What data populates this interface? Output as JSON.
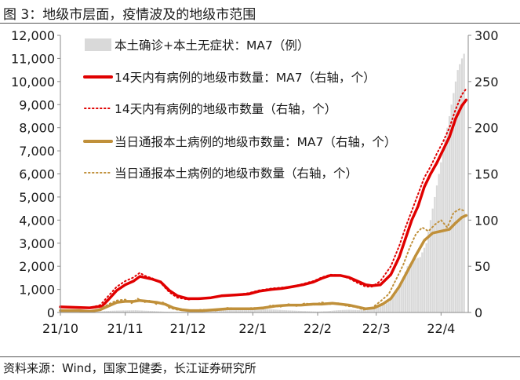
{
  "header": {
    "title": "图 3：地级市层面，疫情波及的地级市范围"
  },
  "footer": {
    "source": "资料来源：Wind，国家卫健委，长江证券研究所"
  },
  "chart_data": {
    "type": "bar+line",
    "title": "图 3：地级市层面，疫情波及的地级市范围",
    "left_axis": {
      "range": [
        0,
        12000
      ],
      "ticks": [
        "0",
        "1,000",
        "2,000",
        "3,000",
        "4,000",
        "5,000",
        "6,000",
        "7,000",
        "8,000",
        "9,000",
        "10,000",
        "11,000",
        "12,000"
      ]
    },
    "right_axis": {
      "range": [
        0,
        300
      ],
      "ticks": [
        "0",
        "50",
        "100",
        "150",
        "200",
        "250",
        "300"
      ]
    },
    "x_axis": {
      "range": [
        "2021-10-01",
        "2022-04-14"
      ],
      "ticks": [
        {
          "label": "21/10",
          "date": "2021-10-01"
        },
        {
          "label": "21/11",
          "date": "2021-11-01"
        },
        {
          "label": "21/12",
          "date": "2021-12-01"
        },
        {
          "label": "22/1",
          "date": "2022-01-01"
        },
        {
          "label": "22/2",
          "date": "2022-02-01"
        },
        {
          "label": "22/3",
          "date": "2022-03-01"
        },
        {
          "label": "22/4",
          "date": "2022-04-01"
        }
      ]
    },
    "legend_position": "top-right",
    "series": [
      {
        "name": "本土确诊+本土无症状：MA7（例）",
        "kind": "bar",
        "axis": "left",
        "color": "#d9d9d9",
        "points": [
          [
            "2021-10-01",
            10
          ],
          [
            "2021-10-15",
            10
          ],
          [
            "2021-10-18",
            30
          ],
          [
            "2021-10-22",
            60
          ],
          [
            "2021-10-27",
            80
          ],
          [
            "2021-11-01",
            90
          ],
          [
            "2021-11-06",
            100
          ],
          [
            "2021-11-10",
            80
          ],
          [
            "2021-11-15",
            60
          ],
          [
            "2021-11-20",
            35
          ],
          [
            "2021-11-25",
            25
          ],
          [
            "2021-12-01",
            30
          ],
          [
            "2021-12-07",
            40
          ],
          [
            "2021-12-12",
            80
          ],
          [
            "2021-12-17",
            100
          ],
          [
            "2021-12-22",
            160
          ],
          [
            "2021-12-27",
            180
          ],
          [
            "2022-01-01",
            170
          ],
          [
            "2022-01-06",
            150
          ],
          [
            "2022-01-11",
            130
          ],
          [
            "2022-01-16",
            100
          ],
          [
            "2022-01-21",
            80
          ],
          [
            "2022-01-26",
            60
          ],
          [
            "2022-02-01",
            40
          ],
          [
            "2022-02-06",
            60
          ],
          [
            "2022-02-11",
            100
          ],
          [
            "2022-02-16",
            120
          ],
          [
            "2022-02-21",
            100
          ],
          [
            "2022-02-26",
            150
          ],
          [
            "2022-03-01",
            200
          ],
          [
            "2022-03-04",
            300
          ],
          [
            "2022-03-07",
            450
          ],
          [
            "2022-03-10",
            800
          ],
          [
            "2022-03-13",
            1300
          ],
          [
            "2022-03-16",
            2000
          ],
          [
            "2022-03-19",
            2300
          ],
          [
            "2022-03-22",
            2400
          ],
          [
            "2022-03-25",
            3000
          ],
          [
            "2022-03-28",
            4500
          ],
          [
            "2022-03-31",
            6000
          ],
          [
            "2022-04-03",
            7500
          ],
          [
            "2022-04-06",
            9000
          ],
          [
            "2022-04-09",
            10500
          ],
          [
            "2022-04-11",
            11000
          ],
          [
            "2022-04-12",
            11200
          ]
        ]
      },
      {
        "name": "14天内有病例的地级市数量：MA7（右轴，个）",
        "kind": "line",
        "axis": "right",
        "color": "#e00000",
        "style": "solid",
        "points": [
          [
            "2021-10-01",
            6
          ],
          [
            "2021-10-08",
            5.5
          ],
          [
            "2021-10-15",
            5
          ],
          [
            "2021-10-21",
            7
          ],
          [
            "2021-10-24",
            14
          ],
          [
            "2021-10-28",
            24
          ],
          [
            "2021-11-01",
            30
          ],
          [
            "2021-11-05",
            34
          ],
          [
            "2021-11-08",
            39
          ],
          [
            "2021-11-10",
            38
          ],
          [
            "2021-11-14",
            36
          ],
          [
            "2021-11-18",
            33
          ],
          [
            "2021-11-22",
            24
          ],
          [
            "2021-11-26",
            18
          ],
          [
            "2021-12-01",
            15
          ],
          [
            "2021-12-06",
            15
          ],
          [
            "2021-12-12",
            16
          ],
          [
            "2021-12-17",
            18
          ],
          [
            "2021-12-24",
            19
          ],
          [
            "2021-12-30",
            20
          ],
          [
            "2022-01-04",
            23
          ],
          [
            "2022-01-10",
            25
          ],
          [
            "2022-01-15",
            26
          ],
          [
            "2022-01-20",
            28
          ],
          [
            "2022-01-25",
            30
          ],
          [
            "2022-01-30",
            33
          ],
          [
            "2022-02-03",
            37
          ],
          [
            "2022-02-07",
            40
          ],
          [
            "2022-02-12",
            40
          ],
          [
            "2022-02-16",
            38
          ],
          [
            "2022-02-20",
            34
          ],
          [
            "2022-02-24",
            30
          ],
          [
            "2022-02-27",
            29
          ],
          [
            "2022-03-03",
            30
          ],
          [
            "2022-03-08",
            41
          ],
          [
            "2022-03-12",
            60
          ],
          [
            "2022-03-15",
            80
          ],
          [
            "2022-03-18",
            100
          ],
          [
            "2022-03-21",
            115
          ],
          [
            "2022-03-24",
            136
          ],
          [
            "2022-03-27",
            150
          ],
          [
            "2022-03-30",
            162
          ],
          [
            "2022-04-02",
            176
          ],
          [
            "2022-04-05",
            190
          ],
          [
            "2022-04-08",
            210
          ],
          [
            "2022-04-11",
            224
          ],
          [
            "2022-04-13",
            230
          ]
        ]
      },
      {
        "name": "14天内有病例的地级市数量（右轴，个）",
        "kind": "line",
        "axis": "right",
        "color": "#e00000",
        "style": "dotted",
        "points": [
          [
            "2021-10-01",
            6
          ],
          [
            "2021-10-08",
            5.5
          ],
          [
            "2021-10-15",
            5
          ],
          [
            "2021-10-20",
            8
          ],
          [
            "2021-10-24",
            18
          ],
          [
            "2021-10-28",
            28
          ],
          [
            "2021-11-01",
            34
          ],
          [
            "2021-11-05",
            38
          ],
          [
            "2021-11-08",
            43
          ],
          [
            "2021-11-10",
            40
          ],
          [
            "2021-11-14",
            37
          ],
          [
            "2021-11-18",
            32
          ],
          [
            "2021-11-22",
            22
          ],
          [
            "2021-11-26",
            16
          ],
          [
            "2021-12-01",
            14
          ],
          [
            "2021-12-06",
            15
          ],
          [
            "2021-12-12",
            16
          ],
          [
            "2021-12-17",
            18
          ],
          [
            "2021-12-24",
            19
          ],
          [
            "2021-12-30",
            21
          ],
          [
            "2022-01-04",
            24
          ],
          [
            "2022-01-10",
            26
          ],
          [
            "2022-01-15",
            27
          ],
          [
            "2022-01-20",
            28
          ],
          [
            "2022-01-25",
            31
          ],
          [
            "2022-01-30",
            34
          ],
          [
            "2022-02-03",
            38
          ],
          [
            "2022-02-07",
            41
          ],
          [
            "2022-02-12",
            40
          ],
          [
            "2022-02-16",
            37
          ],
          [
            "2022-02-20",
            32
          ],
          [
            "2022-02-24",
            28
          ],
          [
            "2022-02-27",
            28
          ],
          [
            "2022-03-03",
            34
          ],
          [
            "2022-03-08",
            50
          ],
          [
            "2022-03-12",
            72
          ],
          [
            "2022-03-15",
            92
          ],
          [
            "2022-03-18",
            110
          ],
          [
            "2022-03-21",
            128
          ],
          [
            "2022-03-24",
            146
          ],
          [
            "2022-03-27",
            158
          ],
          [
            "2022-03-30",
            172
          ],
          [
            "2022-04-02",
            185
          ],
          [
            "2022-04-05",
            200
          ],
          [
            "2022-04-08",
            220
          ],
          [
            "2022-04-11",
            236
          ],
          [
            "2022-04-13",
            242
          ]
        ]
      },
      {
        "name": "当日通报本土病例的地级市数量：MA7（右轴，个）",
        "kind": "line",
        "axis": "right",
        "color": "#c0903a",
        "style": "solid",
        "points": [
          [
            "2021-10-01",
            2
          ],
          [
            "2021-10-10",
            2
          ],
          [
            "2021-10-15",
            1
          ],
          [
            "2021-10-20",
            3
          ],
          [
            "2021-10-25",
            8
          ],
          [
            "2021-10-28",
            11
          ],
          [
            "2021-11-01",
            12
          ],
          [
            "2021-11-05",
            12
          ],
          [
            "2021-11-08",
            13
          ],
          [
            "2021-11-12",
            12
          ],
          [
            "2021-11-16",
            11
          ],
          [
            "2021-11-20",
            9
          ],
          [
            "2021-11-24",
            5
          ],
          [
            "2021-11-28",
            3
          ],
          [
            "2021-12-02",
            2
          ],
          [
            "2021-12-08",
            2
          ],
          [
            "2021-12-14",
            3
          ],
          [
            "2021-12-20",
            4
          ],
          [
            "2021-12-26",
            4
          ],
          [
            "2022-01-01",
            4
          ],
          [
            "2022-01-06",
            5
          ],
          [
            "2022-01-12",
            7
          ],
          [
            "2022-01-18",
            8
          ],
          [
            "2022-01-24",
            8
          ],
          [
            "2022-01-30",
            9
          ],
          [
            "2022-02-03",
            9
          ],
          [
            "2022-02-08",
            10
          ],
          [
            "2022-02-12",
            9
          ],
          [
            "2022-02-16",
            8
          ],
          [
            "2022-02-20",
            6
          ],
          [
            "2022-02-24",
            4
          ],
          [
            "2022-02-28",
            5
          ],
          [
            "2022-03-04",
            9
          ],
          [
            "2022-03-08",
            15
          ],
          [
            "2022-03-12",
            28
          ],
          [
            "2022-03-16",
            45
          ],
          [
            "2022-03-20",
            62
          ],
          [
            "2022-03-24",
            78
          ],
          [
            "2022-03-28",
            86
          ],
          [
            "2022-04-01",
            88
          ],
          [
            "2022-04-05",
            90
          ],
          [
            "2022-04-08",
            97
          ],
          [
            "2022-04-11",
            103
          ],
          [
            "2022-04-13",
            105
          ]
        ]
      },
      {
        "name": "当日通报本土病例的地级市数量（右轴，个）",
        "kind": "line",
        "axis": "right",
        "color": "#c0903a",
        "style": "dotted",
        "points": [
          [
            "2021-10-01",
            2
          ],
          [
            "2021-10-10",
            2
          ],
          [
            "2021-10-15",
            1
          ],
          [
            "2021-10-20",
            4
          ],
          [
            "2021-10-25",
            10
          ],
          [
            "2021-10-28",
            13
          ],
          [
            "2021-11-01",
            14
          ],
          [
            "2021-11-04",
            10
          ],
          [
            "2021-11-07",
            15
          ],
          [
            "2021-11-10",
            11
          ],
          [
            "2021-11-13",
            13
          ],
          [
            "2021-11-16",
            9
          ],
          [
            "2021-11-19",
            11
          ],
          [
            "2021-11-22",
            5
          ],
          [
            "2021-11-26",
            3
          ],
          [
            "2021-12-02",
            2
          ],
          [
            "2021-12-08",
            3
          ],
          [
            "2021-12-14",
            2
          ],
          [
            "2021-12-20",
            5
          ],
          [
            "2021-12-26",
            4
          ],
          [
            "2022-01-01",
            5
          ],
          [
            "2022-01-06",
            4
          ],
          [
            "2022-01-10",
            8
          ],
          [
            "2022-01-14",
            6
          ],
          [
            "2022-01-18",
            9
          ],
          [
            "2022-01-22",
            7
          ],
          [
            "2022-01-26",
            10
          ],
          [
            "2022-01-30",
            8
          ],
          [
            "2022-02-03",
            11
          ],
          [
            "2022-02-07",
            9
          ],
          [
            "2022-02-11",
            10
          ],
          [
            "2022-02-15",
            7
          ],
          [
            "2022-02-19",
            6
          ],
          [
            "2022-02-23",
            3
          ],
          [
            "2022-02-27",
            5
          ],
          [
            "2022-03-03",
            12
          ],
          [
            "2022-03-07",
            20
          ],
          [
            "2022-03-11",
            38
          ],
          [
            "2022-03-14",
            52
          ],
          [
            "2022-03-17",
            70
          ],
          [
            "2022-03-20",
            85
          ],
          [
            "2022-03-23",
            92
          ],
          [
            "2022-03-26",
            88
          ],
          [
            "2022-03-29",
            95
          ],
          [
            "2022-04-01",
            100
          ],
          [
            "2022-04-04",
            92
          ],
          [
            "2022-04-07",
            108
          ],
          [
            "2022-04-10",
            112
          ],
          [
            "2022-04-12",
            110
          ]
        ]
      }
    ]
  }
}
